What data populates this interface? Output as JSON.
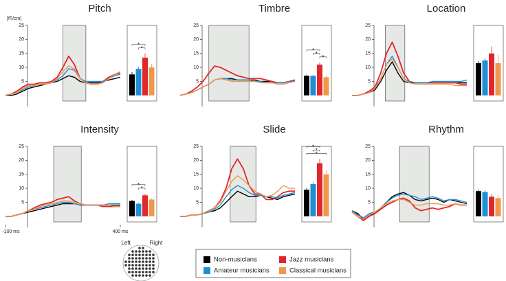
{
  "legend": [
    {
      "name": "Non-musicians",
      "color": "#000000"
    },
    {
      "name": "Jazz musicians",
      "color": "#e0272d"
    },
    {
      "name": "Amateur musicians",
      "color": "#1f8fd4"
    },
    {
      "name": "Classical musicians",
      "color": "#f0974a"
    }
  ],
  "electrode_labels": [
    "Left",
    "Right"
  ],
  "chart_data": [
    {
      "type": "line",
      "title": "Pitch",
      "ylabel": "[fT/cm]",
      "x": [
        -100,
        -75,
        -50,
        -25,
        0,
        25,
        50,
        75,
        100,
        125,
        150,
        175,
        200,
        225,
        250,
        275,
        300,
        325,
        350,
        375,
        400
      ],
      "xlim": [
        -100,
        400
      ],
      "ylim": [
        -2,
        25
      ],
      "yticks": [
        5,
        10,
        15,
        20,
        25
      ],
      "highlight": [
        150,
        250
      ],
      "series": [
        {
          "values": [
            0,
            0,
            0.5,
            1.5,
            2.5,
            3,
            3.5,
            4,
            4.5,
            5,
            6,
            7,
            6.5,
            5,
            4.5,
            4.5,
            4.5,
            5,
            5.5,
            6,
            6.5
          ]
        },
        {
          "values": [
            0,
            0.5,
            1.5,
            3,
            4,
            4,
            4.5,
            4.5,
            5,
            6.5,
            10,
            14,
            11,
            6,
            4.5,
            4,
            4,
            5,
            6.5,
            7.5,
            8
          ]
        },
        {
          "values": [
            0,
            0.5,
            1,
            2,
            3,
            3.5,
            4,
            4,
            4.5,
            5.5,
            7,
            9.5,
            9,
            6,
            5,
            5,
            5,
            5,
            6,
            7,
            7.5
          ]
        },
        {
          "values": [
            0,
            0.5,
            1,
            2.5,
            3.5,
            3.5,
            4,
            4,
            4.5,
            6,
            8.5,
            10.5,
            9.5,
            6,
            4.5,
            4,
            4,
            4.5,
            6,
            7.5,
            8.5
          ]
        }
      ]
    },
    {
      "type": "bar",
      "ylim": [
        -2,
        25
      ],
      "values": [
        7.5,
        13.5,
        9.5,
        10
      ],
      "errors": [
        0.8,
        1.5,
        0.8,
        1.2
      ],
      "significance": [
        {
          "from": 0,
          "to": 1,
          "label": "*"
        },
        {
          "from": 1,
          "to": 2,
          "label": "*"
        }
      ]
    },
    {
      "type": "line",
      "title": "Timbre",
      "x": [
        -100,
        -75,
        -50,
        -25,
        0,
        25,
        50,
        75,
        100,
        125,
        150,
        175,
        200,
        225,
        250,
        275,
        300,
        325,
        350,
        375,
        400
      ],
      "xlim": [
        -100,
        400
      ],
      "ylim": [
        -2,
        25
      ],
      "yticks": [
        5,
        10,
        15,
        20,
        25
      ],
      "highlight": [
        25,
        200
      ],
      "series": [
        {
          "values": [
            0,
            0.5,
            1,
            2,
            3,
            4,
            5.5,
            6,
            6,
            6,
            5.5,
            5.5,
            5.5,
            5.5,
            5,
            5,
            5,
            4.5,
            4.5,
            5,
            5
          ]
        },
        {
          "values": [
            0,
            0.5,
            1.5,
            3,
            5,
            8,
            10.5,
            10,
            9,
            8,
            7,
            6.5,
            6,
            6,
            6,
            5.5,
            5,
            4.5,
            4.5,
            5,
            5.5
          ]
        },
        {
          "values": [
            0,
            0.5,
            1,
            2,
            3,
            4,
            5.5,
            6,
            6,
            5.5,
            5.5,
            5.5,
            5.5,
            5,
            5,
            4.5,
            4.5,
            4.5,
            4.5,
            5,
            5
          ]
        },
        {
          "values": [
            0,
            0.5,
            1,
            2,
            3,
            4,
            5.5,
            6,
            5.5,
            5,
            5,
            5,
            5,
            5,
            4.5,
            4.5,
            4.5,
            4,
            4,
            4.5,
            5
          ]
        }
      ]
    },
    {
      "type": "bar",
      "ylim": [
        -2,
        25
      ],
      "values": [
        7,
        11,
        7,
        6.5
      ],
      "errors": [
        0.4,
        0.8,
        0.4,
        0.6
      ],
      "significance": [
        {
          "from": 0,
          "to": 1,
          "label": "*"
        },
        {
          "from": 1,
          "to": 2,
          "label": "*"
        },
        {
          "from": 1,
          "to": 3,
          "label": "*"
        }
      ]
    },
    {
      "type": "line",
      "title": "Location",
      "x": [
        -100,
        -75,
        -50,
        -25,
        0,
        25,
        50,
        75,
        100,
        125,
        150,
        175,
        200,
        225,
        250,
        275,
        300,
        325,
        350,
        375,
        400
      ],
      "xlim": [
        -100,
        400
      ],
      "ylim": [
        -2,
        25
      ],
      "yticks": [
        5,
        10,
        15,
        20,
        25
      ],
      "highlight": [
        45,
        130
      ],
      "series": [
        {
          "values": [
            0,
            0,
            0.5,
            1,
            2,
            5,
            9,
            12,
            8,
            5,
            4.5,
            4.5,
            4.5,
            4.5,
            4.5,
            4.5,
            4.5,
            4.5,
            4.5,
            4.5,
            4.5
          ]
        },
        {
          "values": [
            0,
            0,
            0.5,
            1.5,
            3,
            8,
            15,
            19,
            14,
            8,
            5,
            4.5,
            4.5,
            4.5,
            4.5,
            4.5,
            4.5,
            4.5,
            4.5,
            4,
            4
          ]
        },
        {
          "values": [
            0,
            0,
            0.5,
            1,
            2.5,
            6,
            11,
            14,
            10,
            6,
            5,
            4.5,
            4.5,
            4.5,
            5,
            5,
            5,
            5,
            5,
            5,
            5.5
          ]
        },
        {
          "values": [
            0,
            0,
            0.5,
            1,
            2.5,
            6,
            11,
            13,
            10,
            6,
            4.5,
            4,
            4,
            4,
            4,
            4,
            4,
            4,
            3.5,
            3.5,
            3.5
          ]
        }
      ]
    },
    {
      "type": "bar",
      "ylim": [
        -2,
        25
      ],
      "values": [
        11.5,
        15,
        12.5,
        11.5
      ],
      "errors": [
        0.8,
        2.5,
        0.8,
        3
      ]
    },
    {
      "type": "line",
      "title": "Intensity",
      "x": [
        -100,
        -75,
        -50,
        -25,
        0,
        25,
        50,
        75,
        100,
        125,
        150,
        175,
        200,
        225,
        250,
        275,
        300,
        325,
        350,
        375,
        400
      ],
      "xlim": [
        -100,
        400
      ],
      "xticks": [
        {
          "value": -100,
          "label": "-100 ms"
        },
        {
          "value": 400,
          "label": "400 ms"
        }
      ],
      "ylim": [
        -2,
        25
      ],
      "yticks": [
        5,
        10,
        15,
        20,
        25
      ],
      "highlight": [
        110,
        230
      ],
      "series": [
        {
          "values": [
            0,
            0,
            0.5,
            1,
            1.5,
            2,
            2.5,
            3,
            3.5,
            4,
            4.5,
            4.5,
            4.5,
            4,
            4,
            4,
            4,
            4,
            4,
            4,
            4
          ]
        },
        {
          "values": [
            0,
            0,
            0.5,
            1,
            2,
            3,
            4,
            4.5,
            5,
            6,
            6.5,
            7,
            5.5,
            4.5,
            4,
            4,
            4,
            3.5,
            3.5,
            3.5,
            3.5
          ]
        },
        {
          "values": [
            0,
            0,
            0.5,
            1,
            2,
            2.5,
            3,
            3.5,
            4,
            4.5,
            5,
            5,
            4.5,
            4,
            4,
            4,
            4,
            4,
            4.5,
            4.5,
            4.5
          ]
        },
        {
          "values": [
            0,
            0,
            0.5,
            1,
            2,
            2.5,
            3.5,
            4,
            4.5,
            5,
            5.5,
            5.5,
            5,
            4.5,
            4,
            4,
            4,
            4,
            4,
            3.5,
            3.5
          ]
        }
      ]
    },
    {
      "type": "bar",
      "ylim": [
        -2,
        25
      ],
      "values": [
        5.5,
        7.5,
        4.5,
        6
      ],
      "errors": [
        0.4,
        0.6,
        0.4,
        0.5
      ],
      "significance": [
        {
          "from": 0,
          "to": 1,
          "label": "*"
        },
        {
          "from": 1,
          "to": 2,
          "label": "*"
        }
      ]
    },
    {
      "type": "line",
      "title": "Slide",
      "x": [
        -100,
        -75,
        -50,
        -25,
        0,
        25,
        50,
        75,
        100,
        125,
        150,
        175,
        200,
        225,
        250,
        275,
        300,
        325,
        350,
        375,
        400
      ],
      "xlim": [
        -100,
        400
      ],
      "ylim": [
        -2,
        25
      ],
      "yticks": [
        5,
        10,
        15,
        20,
        25
      ],
      "highlight": [
        118,
        230
      ],
      "series": [
        {
          "values": [
            0,
            0,
            0.5,
            0.5,
            1,
            1.5,
            2,
            3,
            5,
            7,
            9,
            8,
            7,
            7,
            7.5,
            7,
            6.5,
            6,
            7,
            7.5,
            8
          ]
        },
        {
          "values": [
            0,
            0,
            0.5,
            0.5,
            1,
            2,
            3,
            5.5,
            10,
            17,
            20.5,
            17,
            11,
            8,
            8,
            6,
            6,
            7,
            8.5,
            9,
            9
          ]
        },
        {
          "values": [
            0,
            0,
            0.5,
            0.5,
            1,
            1.5,
            2.5,
            4,
            7,
            9.5,
            11,
            10,
            8.5,
            7.5,
            7.5,
            7,
            7,
            6.5,
            7.5,
            8,
            8.5
          ]
        },
        {
          "values": [
            0,
            0,
            0.5,
            0.5,
            1,
            2,
            3,
            5,
            9,
            12.5,
            14.5,
            13,
            11,
            9,
            8,
            7,
            7.5,
            9,
            11,
            10,
            10
          ]
        }
      ]
    },
    {
      "type": "bar",
      "ylim": [
        -2,
        25
      ],
      "values": [
        9.5,
        19,
        11.5,
        15
      ],
      "errors": [
        0.6,
        1.5,
        0.8,
        1.5
      ],
      "significance": [
        {
          "from": 0,
          "to": 1,
          "label": "*"
        },
        {
          "from": 1,
          "to": 2,
          "label": "*"
        },
        {
          "from": 0,
          "to": 3,
          "label": "*"
        }
      ]
    },
    {
      "type": "line",
      "title": "Rhythm",
      "x": [
        -100,
        -75,
        -50,
        -25,
        0,
        25,
        50,
        75,
        100,
        125,
        150,
        175,
        200,
        225,
        250,
        275,
        300,
        325,
        350,
        375,
        400
      ],
      "xlim": [
        -100,
        400
      ],
      "ylim": [
        -2,
        25
      ],
      "yticks": [
        5,
        10,
        15,
        20,
        25
      ],
      "highlight": [
        108,
        236
      ],
      "series": [
        {
          "values": [
            2,
            1,
            -1,
            0.5,
            1,
            3,
            5,
            7,
            8,
            8.5,
            7.5,
            6,
            5.5,
            6,
            6.5,
            6,
            5,
            6,
            5.5,
            5,
            4.5
          ]
        },
        {
          "values": [
            1.5,
            0,
            -1.5,
            0,
            1,
            2.5,
            4,
            5,
            6,
            6.5,
            5.5,
            3,
            2,
            2.5,
            3,
            2.5,
            3,
            3.5,
            4.5,
            4,
            4
          ]
        },
        {
          "values": [
            2,
            0.5,
            -0.5,
            1,
            1.5,
            3,
            5,
            6.5,
            7.5,
            8,
            7.5,
            7,
            6,
            6.5,
            7,
            6.5,
            5.5,
            6,
            6,
            5.5,
            5
          ]
        },
        {
          "values": [
            1.5,
            0,
            -1,
            0.5,
            1.5,
            3,
            4.5,
            5.5,
            6,
            6,
            5,
            4,
            4,
            4.5,
            4.5,
            4.5,
            4,
            4,
            4.5,
            4,
            4
          ]
        }
      ]
    },
    {
      "type": "bar",
      "ylim": [
        -2,
        25
      ],
      "values": [
        9,
        7,
        8.7,
        6.5
      ],
      "errors": [
        0.5,
        1,
        0.7,
        1.2
      ]
    }
  ]
}
